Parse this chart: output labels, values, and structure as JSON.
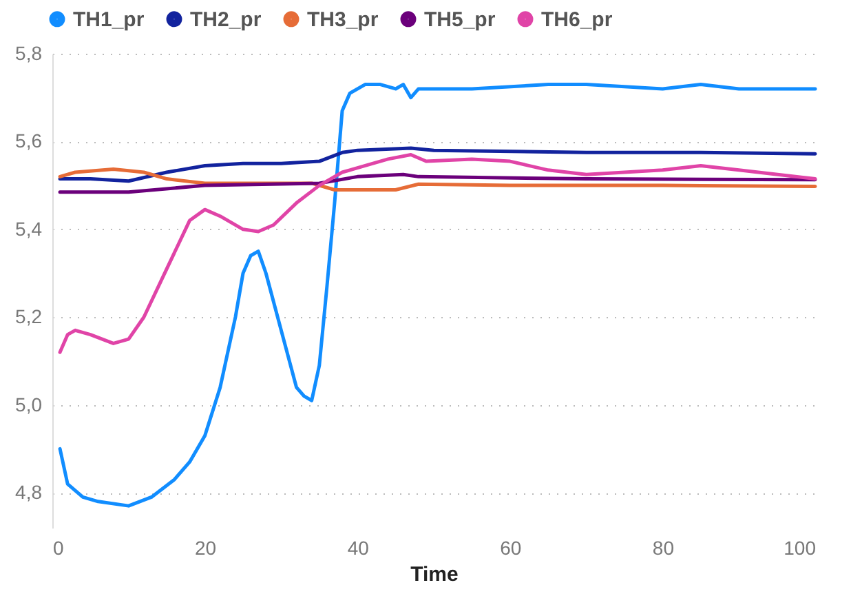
{
  "chart_data": {
    "type": "line",
    "xlabel": "Time",
    "xlim": [
      0,
      100
    ],
    "xticks": [
      0,
      20,
      40,
      60,
      80,
      100
    ],
    "ylim": [
      4.72,
      5.8
    ],
    "yticks": [
      {
        "value": 4.8,
        "label": "4,8"
      },
      {
        "value": 5.0,
        "label": "5,0"
      },
      {
        "value": 5.2,
        "label": "5,2"
      },
      {
        "value": 5.4,
        "label": "5,4"
      },
      {
        "value": 5.6,
        "label": "5,6"
      },
      {
        "value": 5.8,
        "label": "5,8"
      }
    ],
    "grid": "y",
    "legend": "top left",
    "marker": "none",
    "line_style": "solid",
    "series": [
      {
        "name": "TH1_pr",
        "color": "#118dff",
        "x": [
          1,
          2,
          4,
          6,
          10,
          13,
          16,
          18,
          20,
          22,
          24,
          25,
          26,
          27,
          28,
          30,
          32,
          33,
          34,
          35,
          36,
          37,
          38,
          39,
          41,
          43,
          45,
          46,
          47,
          48,
          55,
          65,
          70,
          80,
          85,
          90,
          100
        ],
        "values": [
          4.9,
          4.82,
          4.79,
          4.78,
          4.77,
          4.79,
          4.83,
          4.87,
          4.93,
          5.04,
          5.2,
          5.3,
          5.34,
          5.35,
          5.3,
          5.17,
          5.04,
          5.02,
          5.01,
          5.09,
          5.27,
          5.46,
          5.67,
          5.71,
          5.73,
          5.73,
          5.72,
          5.73,
          5.7,
          5.72,
          5.72,
          5.73,
          5.73,
          5.72,
          5.73,
          5.72,
          5.72
        ]
      },
      {
        "name": "TH2_pr",
        "color": "#12239e",
        "x": [
          1,
          5,
          10,
          15,
          20,
          25,
          30,
          35,
          38,
          40,
          47,
          50,
          70,
          85,
          100
        ],
        "values": [
          5.515,
          5.515,
          5.51,
          5.53,
          5.545,
          5.55,
          5.55,
          5.555,
          5.575,
          5.58,
          5.585,
          5.58,
          5.575,
          5.575,
          5.572
        ]
      },
      {
        "name": "TH3_pr",
        "color": "#e66c37",
        "x": [
          1,
          3,
          8,
          12,
          15,
          20,
          30,
          34,
          37,
          45,
          48,
          60,
          80,
          100
        ],
        "values": [
          5.52,
          5.53,
          5.537,
          5.53,
          5.515,
          5.505,
          5.505,
          5.505,
          5.49,
          5.49,
          5.503,
          5.5,
          5.5,
          5.498
        ]
      },
      {
        "name": "TH5_pr",
        "color": "#6b007b",
        "x": [
          1,
          5,
          10,
          20,
          35,
          40,
          46,
          48,
          70,
          100
        ],
        "values": [
          5.485,
          5.485,
          5.485,
          5.5,
          5.505,
          5.52,
          5.525,
          5.52,
          5.515,
          5.513
        ]
      },
      {
        "name": "TH6_pr",
        "color": "#e044a7",
        "x": [
          1,
          2,
          3,
          5,
          8,
          10,
          12,
          15,
          18,
          20,
          22,
          25,
          27,
          29,
          32,
          35,
          38,
          40,
          44,
          47,
          49,
          55,
          60,
          65,
          70,
          80,
          85,
          90,
          100
        ],
        "values": [
          5.12,
          5.16,
          5.17,
          5.16,
          5.14,
          5.15,
          5.2,
          5.31,
          5.42,
          5.445,
          5.43,
          5.4,
          5.395,
          5.41,
          5.46,
          5.5,
          5.53,
          5.54,
          5.56,
          5.57,
          5.555,
          5.56,
          5.555,
          5.535,
          5.525,
          5.535,
          5.545,
          5.535,
          5.515
        ]
      }
    ]
  }
}
